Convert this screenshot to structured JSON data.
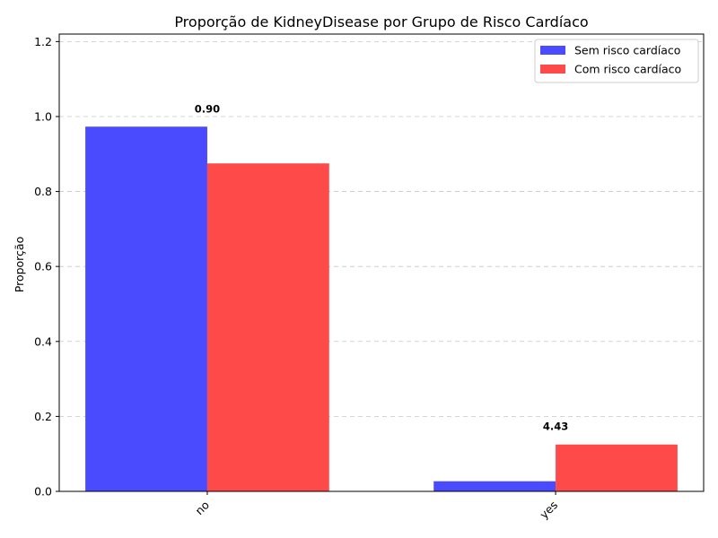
{
  "chart_data": {
    "type": "bar",
    "title": "Proporção de KidneyDisease por Grupo de Risco Cardíaco",
    "xlabel": "",
    "ylabel": "Proporção",
    "categories": [
      "no",
      "yes"
    ],
    "series": [
      {
        "name": "Sem risco cardíaco",
        "values": [
          0.973,
          0.027
        ],
        "color": "#4a4aff"
      },
      {
        "name": "Com risco cardíaco",
        "values": [
          0.875,
          0.125
        ],
        "color": "#ff4a4a"
      }
    ],
    "annotations": [
      {
        "category": "no",
        "text": "0.90"
      },
      {
        "category": "yes",
        "text": "4.43"
      }
    ],
    "ylim": [
      0,
      1.22
    ],
    "yticks": [
      0.0,
      0.2,
      0.4,
      0.6,
      0.8,
      1.0,
      1.2
    ],
    "ytick_labels": [
      "0.0",
      "0.2",
      "0.4",
      "0.6",
      "0.8",
      "1.0",
      "1.2"
    ],
    "grid": "y",
    "legend_position": "top-right"
  }
}
